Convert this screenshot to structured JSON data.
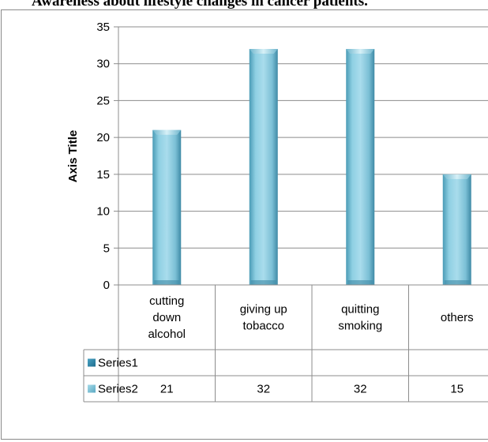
{
  "title": "Awareness about lifestyle changes in cancer patients.",
  "chart_data": {
    "type": "bar",
    "title": "Awareness about lifestyle changes in cancer patients.",
    "xlabel": "",
    "ylabel": "Axis Title",
    "ylim": [
      0,
      35
    ],
    "yticks": [
      0,
      5,
      10,
      15,
      20,
      25,
      30,
      35
    ],
    "grid": true,
    "categories": [
      [
        "cutting",
        "down",
        "alcohol"
      ],
      [
        "giving up",
        "tobacco"
      ],
      [
        "quitting",
        "smoking"
      ],
      [
        "others"
      ]
    ],
    "series": [
      {
        "name": "Series1",
        "values": [
          null,
          null,
          null,
          null
        ],
        "color": "#2e7fa3"
      },
      {
        "name": "Series2",
        "values": [
          21,
          32,
          32,
          15
        ],
        "color": "#7cc3d8"
      }
    ],
    "data_table": true
  }
}
